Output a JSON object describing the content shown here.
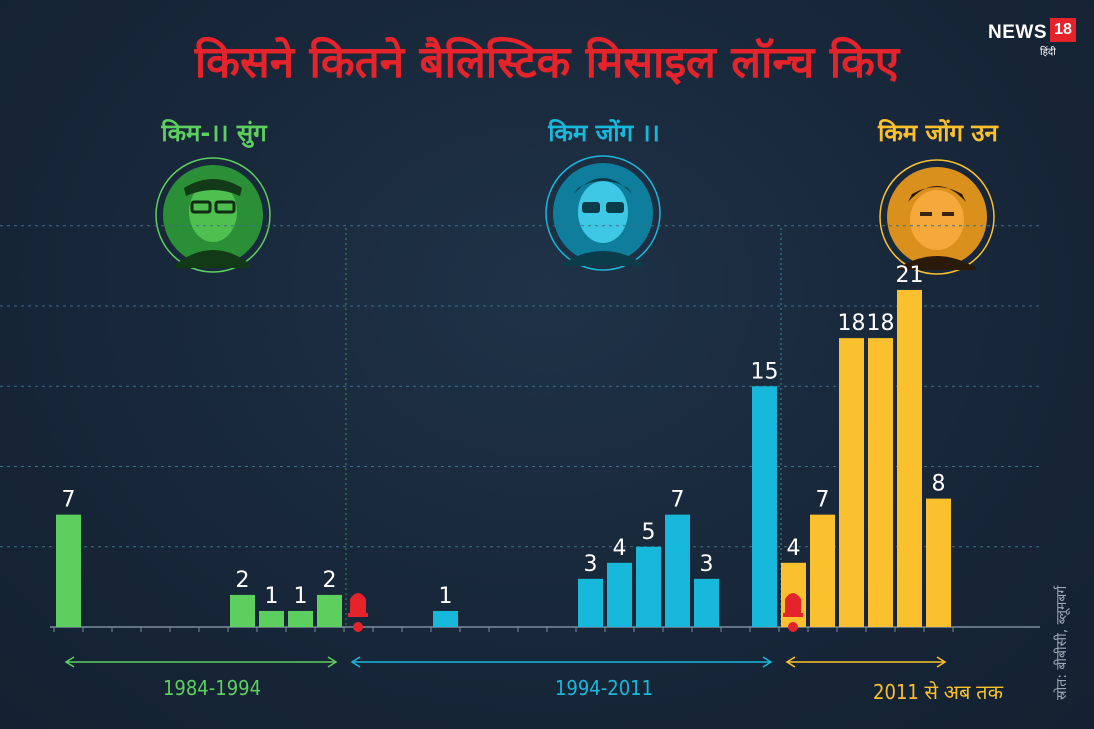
{
  "page": {
    "title": "किसने कितने बैलिस्टिक मिसाइल लॉन्च किए",
    "logo": {
      "brand": "NEWS",
      "number": "18",
      "sub": "हिंदी"
    },
    "source": "स्रोत: बीबीसी, ब्लूमबर्ग"
  },
  "colors": {
    "title": "#e5232b",
    "kim_il_sung": "#5ccf5e",
    "kim_jong_il": "#17b8dc",
    "kim_jong_un": "#fbc02d",
    "marker": "#e5232b",
    "grid": "#3f6f8a",
    "axis": "#7a8c9c"
  },
  "eras": [
    {
      "name": "किम-।। सुंग",
      "range": "1984-1994",
      "color": "#5ccf5e",
      "icon": "portrait-kim-il-sung"
    },
    {
      "name": "किम जोंग ।।",
      "range": "1994-2011",
      "color": "#17b8dc",
      "icon": "portrait-kim-jong-il"
    },
    {
      "name": "किम जोंग उन",
      "range": "2011 से अब तक",
      "color": "#fbc02d",
      "icon": "portrait-kim-jong-un"
    }
  ],
  "chart_data": {
    "type": "bar",
    "title": "किसने कितने बैलिस्टिक मिसाइल लॉन्च किए",
    "xlabel": "",
    "ylabel": "",
    "ylim": [
      0,
      25
    ],
    "grid": true,
    "slots_per_era": [
      10,
      15,
      6
    ],
    "series": [
      {
        "name": "किम-।। सुंग",
        "color": "#5ccf5e",
        "values": [
          7,
          0,
          0,
          0,
          0,
          0,
          2,
          1,
          1,
          2
        ]
      },
      {
        "name": "किम जोंग ।।",
        "color": "#17b8dc",
        "values": [
          0,
          0,
          0,
          1,
          0,
          0,
          0,
          0,
          3,
          4,
          5,
          7,
          3,
          0,
          15
        ]
      },
      {
        "name": "किम जोंग उन",
        "color": "#fbc02d",
        "values": [
          4,
          7,
          18,
          18,
          21,
          8
        ]
      }
    ]
  }
}
